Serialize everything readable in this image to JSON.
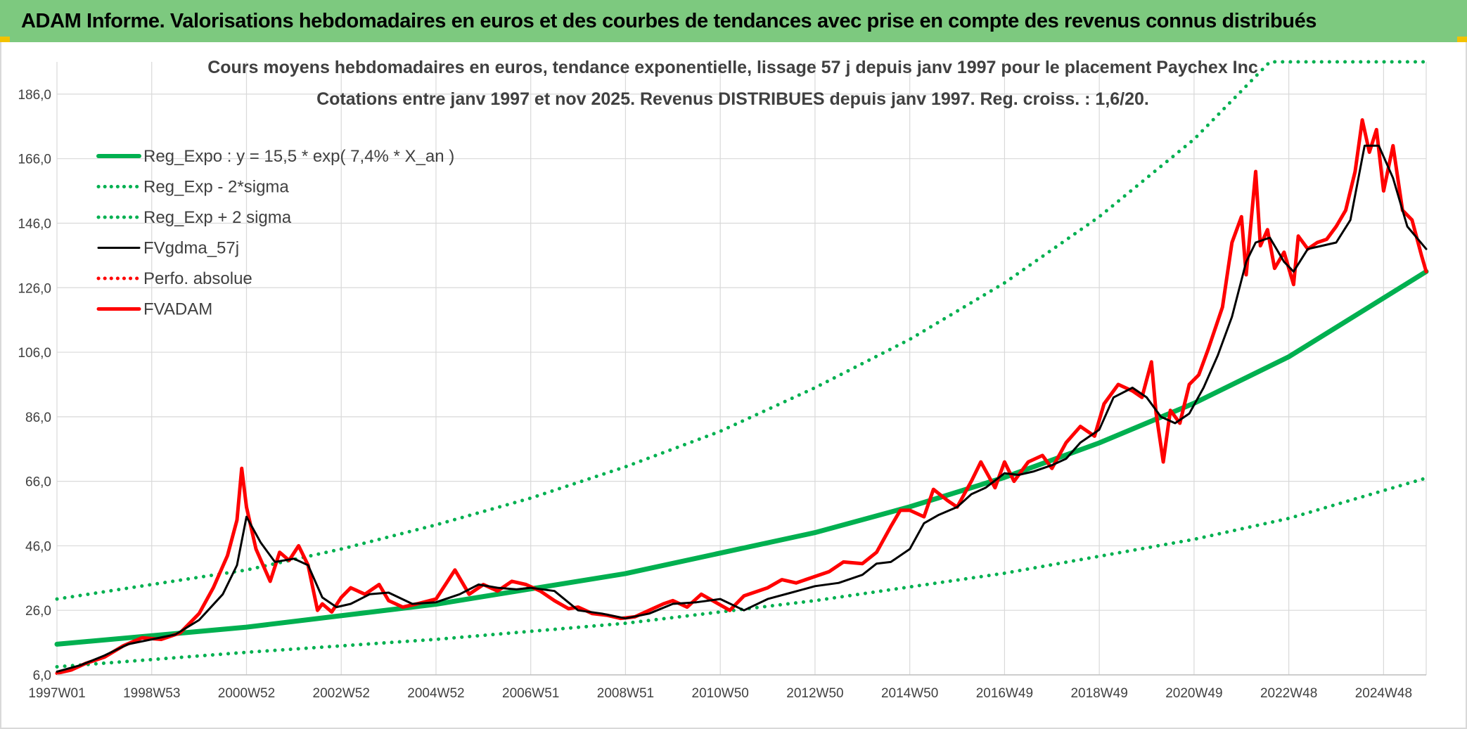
{
  "page": {
    "banner_title": "ADAM Informe. Valorisations hebdomadaires en euros et des courbes de tendances avec prise en compte des revenus connus distribués",
    "banner_color": "#7dc97f"
  },
  "chart_data": {
    "type": "line",
    "title": "Cours moyens hebdomadaires en euros, tendance exponentielle, lissage 57 j depuis janv 1997 pour le placement Paychex Inc",
    "subtitle": "Cotations entre janv 1997 et nov 2025. Revenus DISTRIBUES depuis janv 1997. Reg. croiss. : 1,6/20.",
    "xlabel": "",
    "ylabel": "",
    "x_range": [
      1997.0,
      2025.9
    ],
    "ylim": [
      6.0,
      196.0
    ],
    "y_ticks": [
      6.0,
      26.0,
      46.0,
      66.0,
      86.0,
      106.0,
      126.0,
      146.0,
      166.0,
      186.0
    ],
    "y_tick_labels": [
      "6,0",
      "26,0",
      "46,0",
      "66,0",
      "86,0",
      "106,0",
      "126,0",
      "146,0",
      "166,0",
      "186,0"
    ],
    "x_tick_labels": [
      "1997W01",
      "1998W53",
      "2000W52",
      "2002W52",
      "2004W52",
      "2006W51",
      "2008W51",
      "2010W50",
      "2012W50",
      "2014W50",
      "2016W49",
      "2018W49",
      "2020W49",
      "2022W48",
      "2024W48"
    ],
    "x_tick_positions": [
      1997.0,
      1999.0,
      2001.0,
      2003.0,
      2005.0,
      2007.0,
      2009.0,
      2011.0,
      2013.0,
      2015.0,
      2017.0,
      2019.0,
      2021.0,
      2023.0,
      2025.0
    ],
    "grid": true,
    "legend_position": "top-left",
    "series": [
      {
        "name": "Reg_Expo : y = 15,5 * exp( 7,4% *  X_an )",
        "color": "#00b050",
        "style": "solid-thick",
        "x": [
          1997.0,
          2001.0,
          2005.0,
          2009.0,
          2013.0,
          2015.0,
          2017.0,
          2019.0,
          2021.0,
          2023.0,
          2025.9
        ],
        "y": [
          15.5,
          20.8,
          27.9,
          37.4,
          50.1,
          58.1,
          67.2,
          77.9,
          90.2,
          104.6,
          131.0
        ]
      },
      {
        "name": "Reg_Exp - 2*sigma",
        "color": "#00b050",
        "style": "dotted",
        "x": [
          1997.0,
          2001.0,
          2005.0,
          2009.0,
          2013.0,
          2017.0,
          2021.0,
          2023.0,
          2025.9
        ],
        "y": [
          8.5,
          13.0,
          17.0,
          22.0,
          29.0,
          37.5,
          48.0,
          54.5,
          67.0
        ]
      },
      {
        "name": "Reg_Exp + 2 sigma",
        "color": "#00b050",
        "style": "dotted",
        "x": [
          1997.0,
          2001.0,
          2003.0,
          2005.0,
          2007.0,
          2009.0,
          2011.0,
          2013.0,
          2015.0,
          2017.0,
          2019.0,
          2021.0,
          2022.6,
          2025.9
        ],
        "y": [
          29.5,
          38.5,
          45.0,
          52.5,
          60.8,
          70.5,
          81.5,
          95.0,
          110.0,
          127.5,
          148.0,
          172.0,
          196.0,
          196.0
        ]
      },
      {
        "name": "FVgdma_57j",
        "color": "#000000",
        "style": "solid",
        "x": [
          1997.0,
          1997.5,
          1998.0,
          1998.5,
          1999.0,
          1999.5,
          2000.0,
          2000.5,
          2000.8,
          2001.0,
          2001.3,
          2001.6,
          2002.0,
          2002.3,
          2002.6,
          2002.9,
          2003.2,
          2003.6,
          2004.0,
          2004.5,
          2005.0,
          2005.5,
          2005.9,
          2006.3,
          2006.7,
          2007.0,
          2007.5,
          2008.0,
          2008.5,
          2009.0,
          2009.5,
          2010.0,
          2010.5,
          2011.0,
          2011.5,
          2012.0,
          2012.5,
          2013.0,
          2013.5,
          2014.0,
          2014.3,
          2014.6,
          2015.0,
          2015.3,
          2015.6,
          2016.0,
          2016.3,
          2016.6,
          2017.0,
          2017.3,
          2017.6,
          2018.0,
          2018.3,
          2018.6,
          2019.0,
          2019.3,
          2019.7,
          2020.0,
          2020.3,
          2020.6,
          2020.9,
          2021.2,
          2021.5,
          2021.8,
          2022.1,
          2022.3,
          2022.6,
          2022.9,
          2023.1,
          2023.4,
          2023.7,
          2024.0,
          2024.3,
          2024.6,
          2024.9,
          2025.2,
          2025.5,
          2025.9
        ],
        "y": [
          7.0,
          9.0,
          12.0,
          15.5,
          17.0,
          18.5,
          23.0,
          31.0,
          40.0,
          55.0,
          47.0,
          41.0,
          42.0,
          40.0,
          30.0,
          27.0,
          28.0,
          31.0,
          31.5,
          28.0,
          28.5,
          31.0,
          34.0,
          33.0,
          32.5,
          33.0,
          32.0,
          26.0,
          25.0,
          23.5,
          25.0,
          28.0,
          28.5,
          29.5,
          26.0,
          29.5,
          31.5,
          33.5,
          34.5,
          37.0,
          40.5,
          41.0,
          45.0,
          53.0,
          55.5,
          58.0,
          62.0,
          64.0,
          68.5,
          68.0,
          69.0,
          71.0,
          73.0,
          78.0,
          82.0,
          92.0,
          95.0,
          92.0,
          86.0,
          84.0,
          87.0,
          95.0,
          105.0,
          117.0,
          134.0,
          140.0,
          141.5,
          134.0,
          131.0,
          138.0,
          139.0,
          140.0,
          147.0,
          170.0,
          170.0,
          160.0,
          145.0,
          138.0
        ]
      },
      {
        "name": "Perfo. absolue",
        "color": "#ff0000",
        "style": "dotted",
        "x": [],
        "y": []
      },
      {
        "name": "FVADAM",
        "color": "#ff0000",
        "style": "solid-thick",
        "x": [
          1997.0,
          1997.3,
          1997.6,
          1998.0,
          1998.4,
          1998.8,
          1999.2,
          1999.6,
          2000.0,
          2000.3,
          2000.6,
          2000.8,
          2000.9,
          2001.0,
          2001.2,
          2001.5,
          2001.7,
          2001.9,
          2002.1,
          2002.3,
          2002.5,
          2002.6,
          2002.8,
          2003.0,
          2003.2,
          2003.5,
          2003.8,
          2004.0,
          2004.3,
          2004.6,
          2005.0,
          2005.4,
          2005.7,
          2006.0,
          2006.3,
          2006.6,
          2006.9,
          2007.2,
          2007.5,
          2007.8,
          2008.0,
          2008.3,
          2008.6,
          2008.9,
          2009.2,
          2009.5,
          2009.8,
          2010.0,
          2010.3,
          2010.6,
          2010.9,
          2011.2,
          2011.5,
          2011.8,
          2012.0,
          2012.3,
          2012.6,
          2013.0,
          2013.3,
          2013.6,
          2014.0,
          2014.3,
          2014.6,
          2014.8,
          2015.0,
          2015.3,
          2015.5,
          2015.8,
          2016.0,
          2016.3,
          2016.5,
          2016.8,
          2017.0,
          2017.2,
          2017.5,
          2017.8,
          2018.0,
          2018.3,
          2018.6,
          2018.9,
          2019.1,
          2019.4,
          2019.7,
          2019.9,
          2020.1,
          2020.2,
          2020.35,
          2020.5,
          2020.7,
          2020.9,
          2021.1,
          2021.3,
          2021.6,
          2021.8,
          2022.0,
          2022.1,
          2022.3,
          2022.4,
          2022.55,
          2022.7,
          2022.9,
          2023.1,
          2023.2,
          2023.4,
          2023.6,
          2023.8,
          2024.0,
          2024.2,
          2024.4,
          2024.55,
          2024.7,
          2024.85,
          2025.0,
          2025.2,
          2025.4,
          2025.6,
          2025.8,
          2025.9
        ],
        "y": [
          6.5,
          7.5,
          9.5,
          11.5,
          15.0,
          17.5,
          17.0,
          19.0,
          25.0,
          33.0,
          43.0,
          54.0,
          70.0,
          58.0,
          45.0,
          35.0,
          44.0,
          41.5,
          46.0,
          40.0,
          26.0,
          28.0,
          25.5,
          30.0,
          33.0,
          31.0,
          34.0,
          29.0,
          27.0,
          28.0,
          29.5,
          38.5,
          31.0,
          34.0,
          32.0,
          35.0,
          34.0,
          32.0,
          29.0,
          26.5,
          27.0,
          25.0,
          24.5,
          23.5,
          24.0,
          26.0,
          28.0,
          29.0,
          27.0,
          31.0,
          28.5,
          26.0,
          30.5,
          32.0,
          33.0,
          35.5,
          34.5,
          36.5,
          38.0,
          41.0,
          40.5,
          44.0,
          52.0,
          57.0,
          57.0,
          55.0,
          63.5,
          60.0,
          58.0,
          66.0,
          72.0,
          64.0,
          72.0,
          66.0,
          72.0,
          74.0,
          70.0,
          78.0,
          83.0,
          80.0,
          90.0,
          96.0,
          94.0,
          92.0,
          103.0,
          87.0,
          72.0,
          88.0,
          84.0,
          96.0,
          99.0,
          107.0,
          120.0,
          140.0,
          148.0,
          130.0,
          162.0,
          139.0,
          144.0,
          132.0,
          137.0,
          127.0,
          142.0,
          138.0,
          140.0,
          141.0,
          145.0,
          150.0,
          162.0,
          178.0,
          168.0,
          175.0,
          156.0,
          170.0,
          150.0,
          147.0,
          136.0,
          131.0
        ]
      }
    ]
  }
}
